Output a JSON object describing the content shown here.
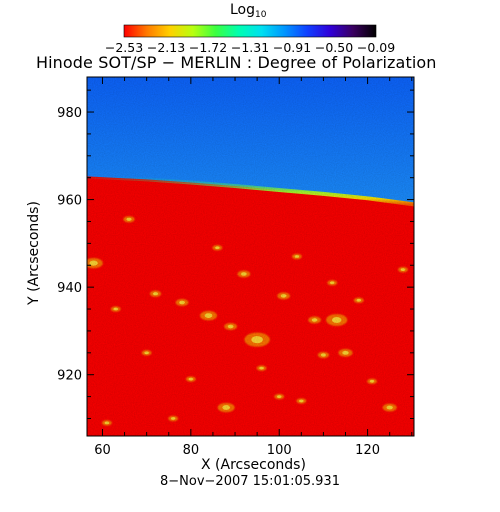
{
  "colorbar": {
    "title": "Log",
    "title_subscript": "10",
    "ticks": [
      "−2.53",
      "−2.13",
      "−1.72",
      "−1.31",
      "−0.91",
      "−0.50",
      "−0.09"
    ],
    "gradient": [
      "#ff0000",
      "#ff7a00",
      "#ffd000",
      "#b8ff10",
      "#3cff40",
      "#00ffb0",
      "#00e0f0",
      "#0096ff",
      "#1040ff",
      "#3000d8",
      "#3a0060",
      "#000000"
    ]
  },
  "chart_data": {
    "type": "heatmap",
    "title": "Hinode SOT/SP − MERLIN : Degree of Polarization",
    "xlabel": "X (Arcseconds)",
    "ylabel": "Y (Arcseconds)",
    "xlim": [
      56.5,
      130.5
    ],
    "ylim": [
      906,
      988
    ],
    "xticks": [
      60,
      80,
      100,
      120
    ],
    "yticks": [
      920,
      940,
      960,
      980
    ],
    "limb": {
      "x": [
        56.5,
        70,
        80,
        90,
        100,
        110,
        120,
        130.5
      ],
      "y": [
        965.3,
        964.6,
        963.9,
        963.1,
        962.2,
        961.3,
        960.3,
        958.9
      ]
    },
    "value_range_log10": [
      -2.53,
      -0.09
    ],
    "background_color": "#0070ff",
    "disk_color": "#ff0000",
    "sky_colors": [
      "#0c64ff",
      "#1a8cff",
      "#19c8e6",
      "#18d6c8"
    ],
    "features": [
      {
        "x": 58,
        "y": 945.5,
        "r": 1.3
      },
      {
        "x": 66,
        "y": 955.5,
        "r": 0.8
      },
      {
        "x": 72,
        "y": 938.5,
        "r": 0.8
      },
      {
        "x": 78,
        "y": 936.5,
        "r": 0.9
      },
      {
        "x": 84,
        "y": 933.5,
        "r": 1.2
      },
      {
        "x": 92,
        "y": 943,
        "r": 0.9
      },
      {
        "x": 95,
        "y": 928,
        "r": 1.8
      },
      {
        "x": 89,
        "y": 931,
        "r": 0.9
      },
      {
        "x": 101,
        "y": 938,
        "r": 0.9
      },
      {
        "x": 108,
        "y": 932.5,
        "r": 0.9
      },
      {
        "x": 113,
        "y": 932.5,
        "r": 1.5
      },
      {
        "x": 112,
        "y": 941,
        "r": 0.7
      },
      {
        "x": 104,
        "y": 947,
        "r": 0.7
      },
      {
        "x": 86,
        "y": 949,
        "r": 0.7
      },
      {
        "x": 88,
        "y": 912.5,
        "r": 1.2
      },
      {
        "x": 80,
        "y": 919,
        "r": 0.7
      },
      {
        "x": 70,
        "y": 925,
        "r": 0.7
      },
      {
        "x": 76,
        "y": 910,
        "r": 0.7
      },
      {
        "x": 100,
        "y": 915,
        "r": 0.7
      },
      {
        "x": 105,
        "y": 914,
        "r": 0.7
      },
      {
        "x": 110,
        "y": 924.5,
        "r": 0.8
      },
      {
        "x": 115,
        "y": 925,
        "r": 1.0
      },
      {
        "x": 121,
        "y": 918.5,
        "r": 0.7
      },
      {
        "x": 125,
        "y": 912.5,
        "r": 1.0
      },
      {
        "x": 128,
        "y": 944,
        "r": 0.7
      },
      {
        "x": 63,
        "y": 935,
        "r": 0.7
      },
      {
        "x": 61,
        "y": 909,
        "r": 0.7
      },
      {
        "x": 118,
        "y": 937,
        "r": 0.7
      },
      {
        "x": 96,
        "y": 921.5,
        "r": 0.7
      }
    ]
  },
  "timestamp": "8−Nov−2007  15:01:05.931"
}
